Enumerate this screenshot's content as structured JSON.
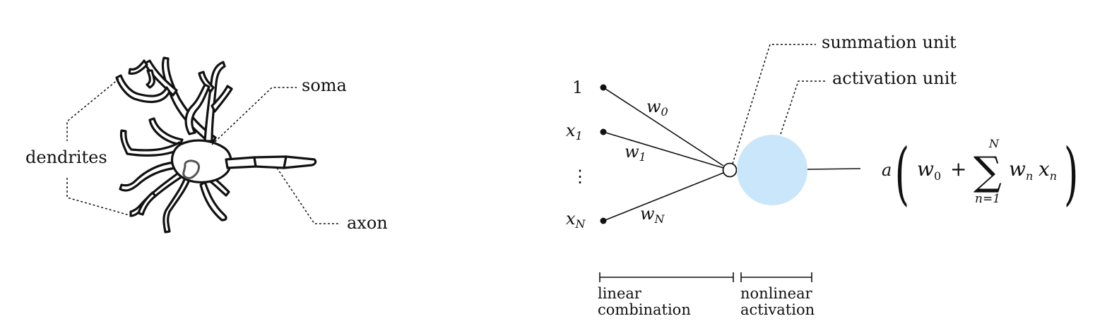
{
  "neuron_labels": {
    "dendrites": "dendrites",
    "soma": "soma",
    "axon": "axon"
  },
  "perceptron": {
    "input_one": "1",
    "input_x": "x",
    "input_sub_1": "1",
    "input_sub_N": "N",
    "vdots": "⋮",
    "weight_w": "w",
    "weight_sub_0": "0",
    "weight_sub_1": "1",
    "weight_sub_N": "N",
    "summation_unit": "summation unit",
    "activation_unit": "activation unit",
    "activation_color": "#c9e6fb"
  },
  "formula": {
    "a": "a",
    "lparen": "(",
    "rparen": ")",
    "w": "w",
    "sub0": "0",
    "plus": "+",
    "sigma": "∑",
    "upper": "N",
    "lower": "n=1",
    "wn_w": "w",
    "wn_sub": "n",
    "xn_x": "x",
    "xn_sub": "n"
  },
  "brackets": {
    "linear_line1": "linear",
    "linear_line2": "combination",
    "nonlinear_line1": "nonlinear",
    "nonlinear_line2": "activation"
  }
}
